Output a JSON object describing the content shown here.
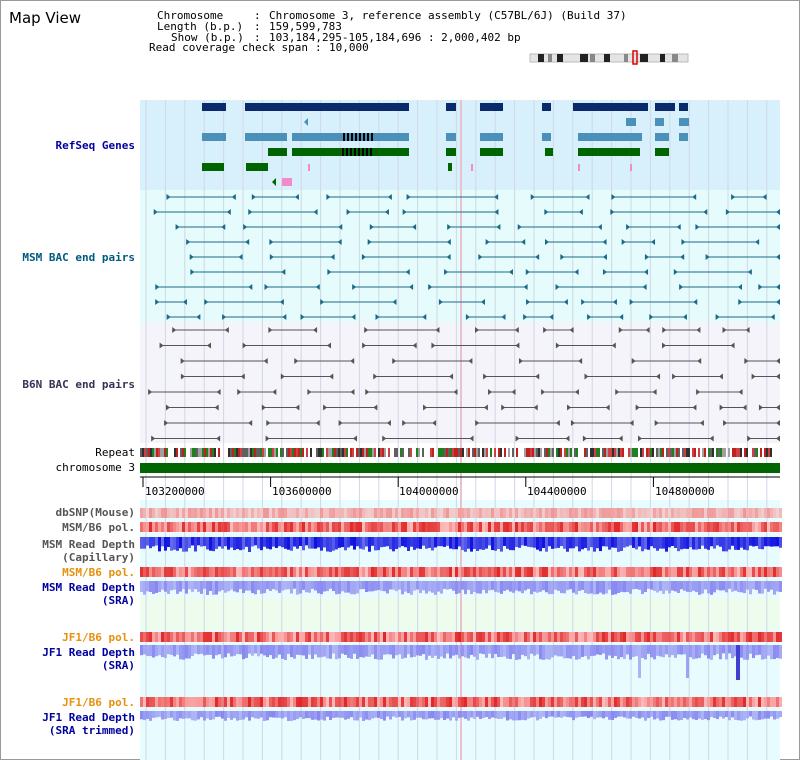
{
  "title": "Map View",
  "info": {
    "chromosome_label": "Chromosome   ",
    "chromosome_value": "Chromosome 3, reference assembly (C57BL/6J) (Build 37)",
    "length_label": "Length (b.p.) ",
    "length_value": "159,599,783",
    "show_label": "Show (b.p.) ",
    "show_value": "103,184,295-105,184,696 : 2,000,402 bp",
    "coverage_label": "Read coverage check span",
    "coverage_value": "10,000"
  },
  "tracks": {
    "refseq": "RefSeq Genes",
    "msm_bac": "MSM BAC end pairs",
    "b6n_bac": "B6N BAC end pairs",
    "repeat": "Repeat",
    "chromosome": "chromosome 3",
    "dbsnp": "dbSNP(Mouse)",
    "msm_b6_pol_1": "MSM/B6 pol.",
    "msm_read_depth_cap_1": "MSM Read Depth",
    "msm_read_depth_cap_2": "(Capillary)",
    "msm_b6_pol_2": "MSM/B6 pol.",
    "msm_read_depth_sra_1": "MSM Read Depth",
    "msm_read_depth_sra_2": "(SRA)",
    "jf1_b6_pol_1": "JF1/B6 pol.",
    "jf1_read_depth_sra_1": "JF1 Read Depth",
    "jf1_read_depth_sra_2": "(SRA)",
    "jf1_b6_pol_2": "JF1/B6 pol.",
    "jf1_read_depth_trim_1": "JF1 Read Depth",
    "jf1_read_depth_trim_2": "(SRA trimmed)"
  },
  "axis_ticks": [
    "103200000",
    "103600000",
    "104000000",
    "104400000",
    "104800000"
  ],
  "colors": {
    "navy": "#0a2a6b",
    "steel": "#4a90b8",
    "green": "#006400",
    "bac_msm": "#1a6a8a",
    "bac_b6n": "#555555",
    "dbsnp": "#f4a6a6",
    "pol": "#e64444",
    "depth_cap": "#1010e0",
    "depth_sra": "#8888f0",
    "jf1_label": "#e8900c",
    "blue_label": "#0000a0"
  }
}
